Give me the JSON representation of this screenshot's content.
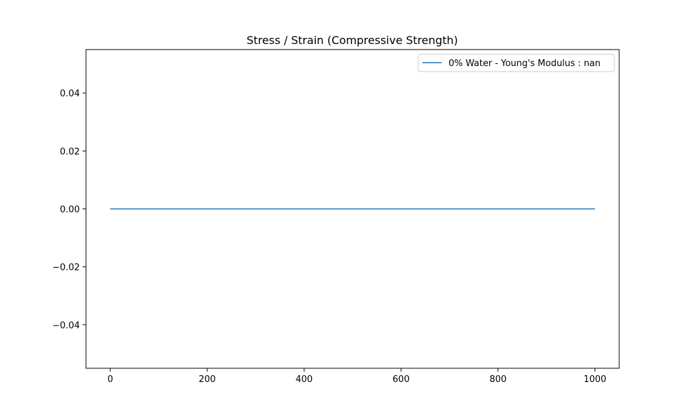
{
  "chart_data": {
    "type": "line",
    "title": "Stress / Strain (Compressive Strength)",
    "xlabel": "",
    "ylabel": "",
    "xlim": [
      -50,
      1050
    ],
    "ylim": [
      -0.055,
      0.055
    ],
    "x_ticks": [
      0,
      200,
      400,
      600,
      800,
      1000
    ],
    "x_tick_labels": [
      "0",
      "200",
      "400",
      "600",
      "800",
      "1000"
    ],
    "y_ticks": [
      0.04,
      0.02,
      0.0,
      -0.02,
      -0.04
    ],
    "y_tick_labels": [
      "0.04",
      "0.02",
      "0.00",
      "−0.02",
      "−0.04"
    ],
    "grid": false,
    "legend_position": "top-right",
    "series": [
      {
        "name": "0% Water - Young's Modulus : nan",
        "color": "#1f77b4",
        "x": [
          0,
          1000
        ],
        "y": [
          0,
          0
        ]
      }
    ]
  }
}
